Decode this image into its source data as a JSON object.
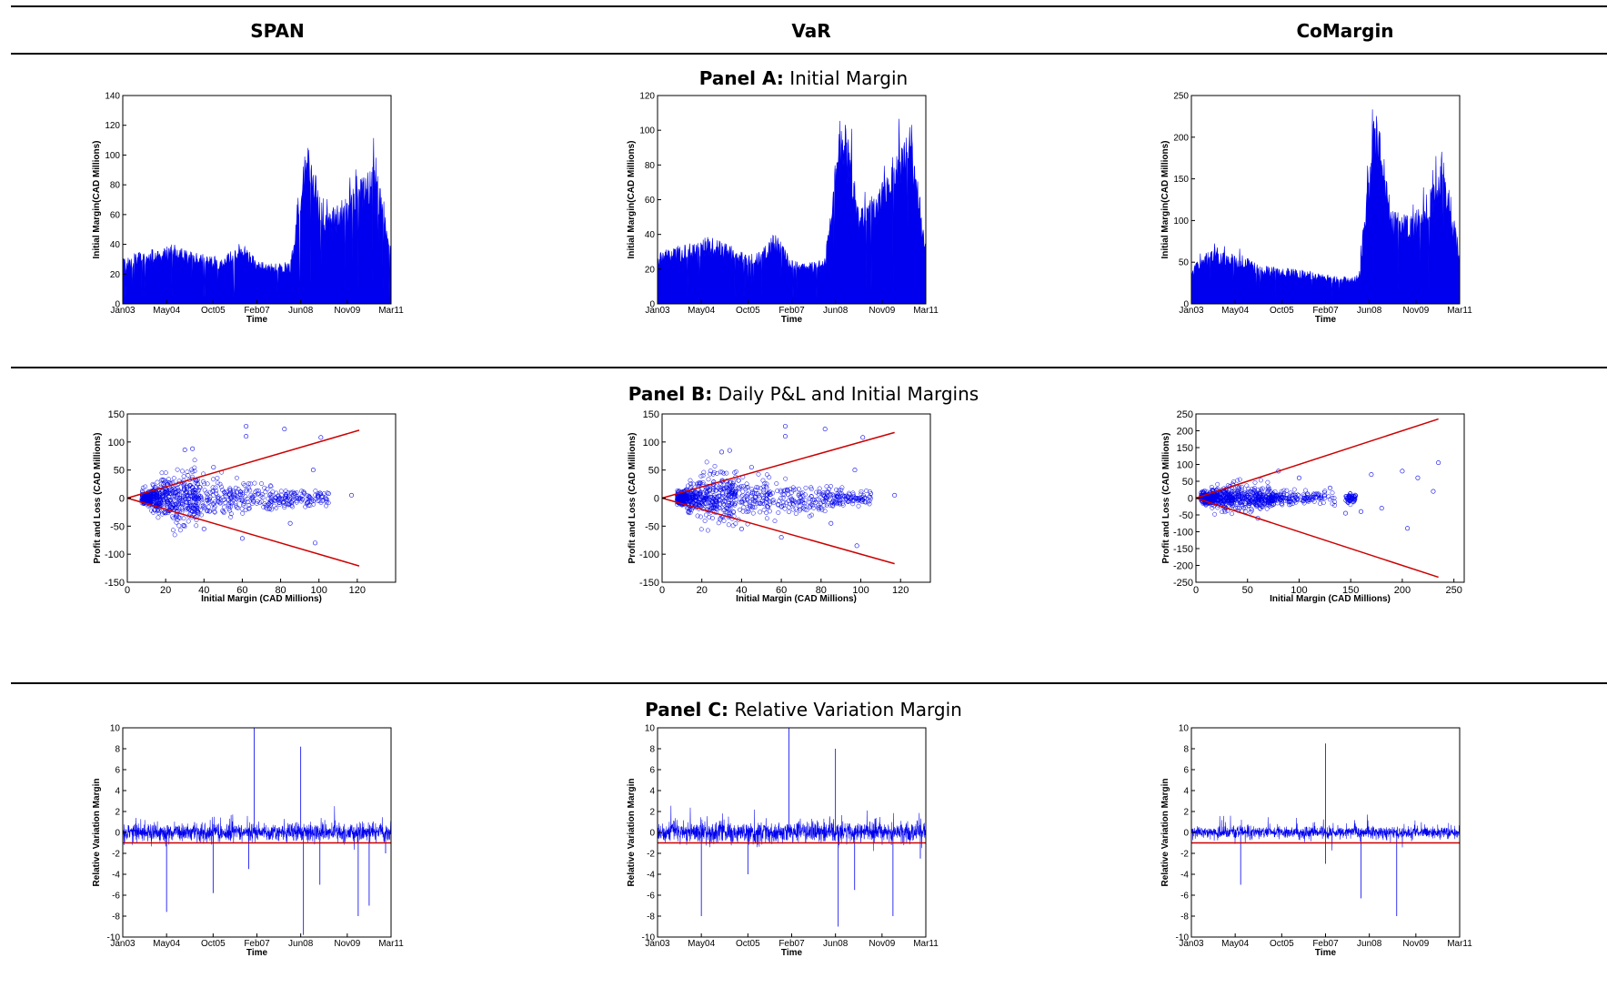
{
  "header": {
    "col1": "SPAN",
    "col2": "VaR",
    "col3": "CoMargin"
  },
  "panels": {
    "a": {
      "label": "Panel A:",
      "title": "Initial Margin"
    },
    "b": {
      "label": "Panel B:",
      "title": "Daily P&L and Initial Margins"
    },
    "c": {
      "label": "Panel C:",
      "title": "Relative Variation Margin"
    }
  },
  "colors": {
    "series": "#0000ee",
    "threshold": "#cc0000",
    "axis": "#000000"
  },
  "chart_data": [
    {
      "id": "a1",
      "type": "area",
      "title": "",
      "xlabel": "Time",
      "ylabel": "Initial Margin(CAD Millions)",
      "xticks": [
        "Jan03",
        "May04",
        "Oct05",
        "Feb07",
        "Jun08",
        "Nov09",
        "Mar11"
      ],
      "ylim": [
        0,
        140
      ],
      "yticks": [
        0,
        20,
        40,
        60,
        80,
        100,
        120,
        140
      ],
      "x": [
        "Jan03",
        "Jul03",
        "Jan04",
        "Jul04",
        "Jan05",
        "Jul05",
        "Jan06",
        "Jul06",
        "Jan07",
        "Jul07",
        "Jan08",
        "Jul08",
        "Jan09",
        "Jul09",
        "Jan10",
        "Jul10",
        "Jan11"
      ],
      "values": [
        26,
        30,
        32,
        34,
        31,
        28,
        27,
        36,
        25,
        23,
        24,
        95,
        52,
        58,
        70,
        85,
        32
      ]
    },
    {
      "id": "a2",
      "type": "area",
      "title": "",
      "xlabel": "Time",
      "ylabel": "Initial Margin(CAD Millions)",
      "xticks": [
        "Jan03",
        "May04",
        "Oct05",
        "Feb07",
        "Jun08",
        "Nov09",
        "Mar11"
      ],
      "ylim": [
        0,
        120
      ],
      "yticks": [
        0,
        20,
        40,
        60,
        80,
        100,
        120
      ],
      "x": [
        "Jan03",
        "Jul03",
        "Jan04",
        "Jul04",
        "Jan05",
        "Jul05",
        "Jan06",
        "Jul06",
        "Jan07",
        "Jul07",
        "Jan08",
        "Jul08",
        "Jan09",
        "Jul09",
        "Jan10",
        "Jul10",
        "Jan11"
      ],
      "values": [
        25,
        28,
        30,
        33,
        30,
        26,
        25,
        35,
        22,
        20,
        23,
        100,
        48,
        55,
        72,
        95,
        30
      ]
    },
    {
      "id": "a3",
      "type": "area",
      "title": "",
      "xlabel": "Time",
      "ylabel": "Initial Margin(CAD Millions)",
      "xticks": [
        "Jan03",
        "May04",
        "Oct05",
        "Feb07",
        "Jun08",
        "Nov09",
        "Mar11"
      ],
      "ylim": [
        0,
        250
      ],
      "yticks": [
        0,
        50,
        100,
        150,
        200,
        250
      ],
      "x": [
        "Jan03",
        "Jul03",
        "Jan04",
        "Jul04",
        "Jan05",
        "Jul05",
        "Jan06",
        "Jul06",
        "Jan07",
        "Jul07",
        "Jan08",
        "Jul08",
        "Jan09",
        "Jul09",
        "Jan10",
        "Jul10",
        "Jan11"
      ],
      "values": [
        38,
        55,
        52,
        50,
        40,
        38,
        36,
        34,
        30,
        28,
        30,
        210,
        95,
        90,
        110,
        150,
        50
      ]
    },
    {
      "id": "b1",
      "type": "scatter",
      "title": "",
      "xlabel": "Initial Margin (CAD Millions)",
      "ylabel": "Profit and Loss (CAD Millions)",
      "xlim": [
        0,
        140
      ],
      "ylim": [
        -150,
        150
      ],
      "xticks": [
        0,
        20,
        40,
        60,
        80,
        100,
        120
      ],
      "yticks": [
        -150,
        -100,
        -50,
        0,
        50,
        100,
        150
      ],
      "bound_lines": [
        [
          0,
          0,
          121,
          121
        ],
        [
          0,
          0,
          121,
          -121
        ]
      ],
      "x_center": [
        10,
        15,
        20,
        25,
        30,
        35,
        40,
        50,
        60,
        70,
        80,
        90,
        100
      ],
      "spread": [
        6,
        12,
        18,
        22,
        25,
        22,
        20,
        16,
        14,
        12,
        10,
        8,
        6
      ],
      "outliers": [
        [
          62,
          128
        ],
        [
          62,
          110
        ],
        [
          82,
          123
        ],
        [
          101,
          108
        ],
        [
          34,
          88
        ],
        [
          30,
          86
        ],
        [
          45,
          55
        ],
        [
          60,
          -72
        ],
        [
          85,
          -45
        ],
        [
          98,
          -80
        ],
        [
          105,
          8
        ],
        [
          117,
          5
        ],
        [
          97,
          50
        ],
        [
          40,
          -55
        ]
      ]
    },
    {
      "id": "b2",
      "type": "scatter",
      "title": "",
      "xlabel": "Initial Margin (CAD Millions)",
      "ylabel": "Profit and Loss (CAD Millions)",
      "xlim": [
        0,
        135
      ],
      "ylim": [
        -150,
        150
      ],
      "xticks": [
        0,
        20,
        40,
        60,
        80,
        100,
        120
      ],
      "yticks": [
        -150,
        -100,
        -50,
        0,
        50,
        100,
        150
      ],
      "bound_lines": [
        [
          0,
          0,
          117,
          117
        ],
        [
          0,
          0,
          117,
          -117
        ]
      ],
      "x_center": [
        10,
        15,
        20,
        25,
        30,
        35,
        40,
        50,
        60,
        70,
        80,
        90,
        100
      ],
      "spread": [
        6,
        12,
        18,
        22,
        25,
        22,
        20,
        16,
        14,
        12,
        10,
        8,
        6
      ],
      "outliers": [
        [
          62,
          128
        ],
        [
          62,
          110
        ],
        [
          82,
          123
        ],
        [
          101,
          108
        ],
        [
          34,
          85
        ],
        [
          30,
          82
        ],
        [
          45,
          55
        ],
        [
          60,
          -70
        ],
        [
          85,
          -45
        ],
        [
          98,
          -85
        ],
        [
          105,
          8
        ],
        [
          117,
          5
        ],
        [
          97,
          50
        ],
        [
          40,
          -55
        ]
      ]
    },
    {
      "id": "b3",
      "type": "scatter",
      "title": "",
      "xlabel": "Initial Margin (CAD Millions)",
      "ylabel": "Profit and Loss (CAD Millions)",
      "xlim": [
        0,
        260
      ],
      "ylim": [
        -250,
        250
      ],
      "xticks": [
        0,
        50,
        100,
        150,
        200,
        250
      ],
      "yticks": [
        -250,
        -200,
        -150,
        -100,
        -50,
        0,
        50,
        100,
        150,
        200,
        250
      ],
      "bound_lines": [
        [
          0,
          0,
          235,
          235
        ],
        [
          0,
          0,
          235,
          -235
        ]
      ],
      "x_center": [
        10,
        20,
        30,
        40,
        50,
        60,
        70,
        80,
        100,
        120,
        150
      ],
      "spread": [
        8,
        14,
        18,
        20,
        18,
        16,
        14,
        12,
        10,
        8,
        6
      ],
      "outliers": [
        [
          80,
          80
        ],
        [
          100,
          60
        ],
        [
          130,
          30
        ],
        [
          160,
          -40
        ],
        [
          170,
          70
        ],
        [
          200,
          80
        ],
        [
          205,
          -90
        ],
        [
          215,
          60
        ],
        [
          230,
          20
        ],
        [
          235,
          105
        ],
        [
          180,
          -30
        ],
        [
          60,
          -60
        ],
        [
          145,
          -45
        ]
      ]
    },
    {
      "id": "c1",
      "type": "line",
      "title": "",
      "xlabel": "Time",
      "ylabel": "Relative Variation Margin",
      "xticks": [
        "Jan03",
        "May04",
        "Oct05",
        "Feb07",
        "Jun08",
        "Nov09",
        "Mar11"
      ],
      "ylim": [
        -10,
        10
      ],
      "yticks": [
        -10,
        -8,
        -6,
        -4,
        -2,
        0,
        2,
        4,
        6,
        8,
        10
      ],
      "threshold": -1,
      "noise": 0.45,
      "spikes": [
        [
          "May04",
          -7.6
        ],
        [
          "Oct05",
          -5.8
        ],
        [
          "Jan07",
          10
        ],
        [
          "Nov06",
          -3.5
        ],
        [
          "Jun08",
          8.2
        ],
        [
          "Jul08",
          -9.8
        ],
        [
          "Jan09",
          -5
        ],
        [
          "Mar10",
          -8
        ],
        [
          "Jul10",
          -7
        ],
        [
          "Jan11",
          -2
        ]
      ]
    },
    {
      "id": "c2",
      "type": "line",
      "title": "",
      "xlabel": "Time",
      "ylabel": "Relative Variation Margin",
      "xticks": [
        "Jan03",
        "May04",
        "Oct05",
        "Feb07",
        "Jun08",
        "Nov09",
        "Mar11"
      ],
      "ylim": [
        -10,
        10
      ],
      "yticks": [
        -10,
        -8,
        -6,
        -4,
        -2,
        0,
        2,
        4,
        6,
        8,
        10
      ],
      "threshold": -1,
      "noise": 0.5,
      "spikes": [
        [
          "May04",
          -8
        ],
        [
          "Oct05",
          -4
        ],
        [
          "Jan07",
          10
        ],
        [
          "Jun08",
          8
        ],
        [
          "Jul08",
          -9
        ],
        [
          "Jan09",
          -5.5
        ],
        [
          "Mar10",
          -8
        ],
        [
          "Jan11",
          -2.5
        ]
      ]
    },
    {
      "id": "c3",
      "type": "line",
      "title": "",
      "xlabel": "Time",
      "ylabel": "Relative Variation Margin",
      "xticks": [
        "Jan03",
        "May04",
        "Oct05",
        "Feb07",
        "Jun08",
        "Nov09",
        "Mar11"
      ],
      "ylim": [
        -10,
        10
      ],
      "yticks": [
        -10,
        -8,
        -6,
        -4,
        -2,
        0,
        2,
        4,
        6,
        8,
        10
      ],
      "threshold": -1,
      "noise": 0.3,
      "spikes": [
        [
          "Jul04",
          -5
        ],
        [
          "Feb07",
          8.5
        ],
        [
          "Mar08",
          -6.3
        ],
        [
          "Apr09",
          -8
        ],
        [
          "Feb07",
          -3
        ]
      ]
    }
  ]
}
